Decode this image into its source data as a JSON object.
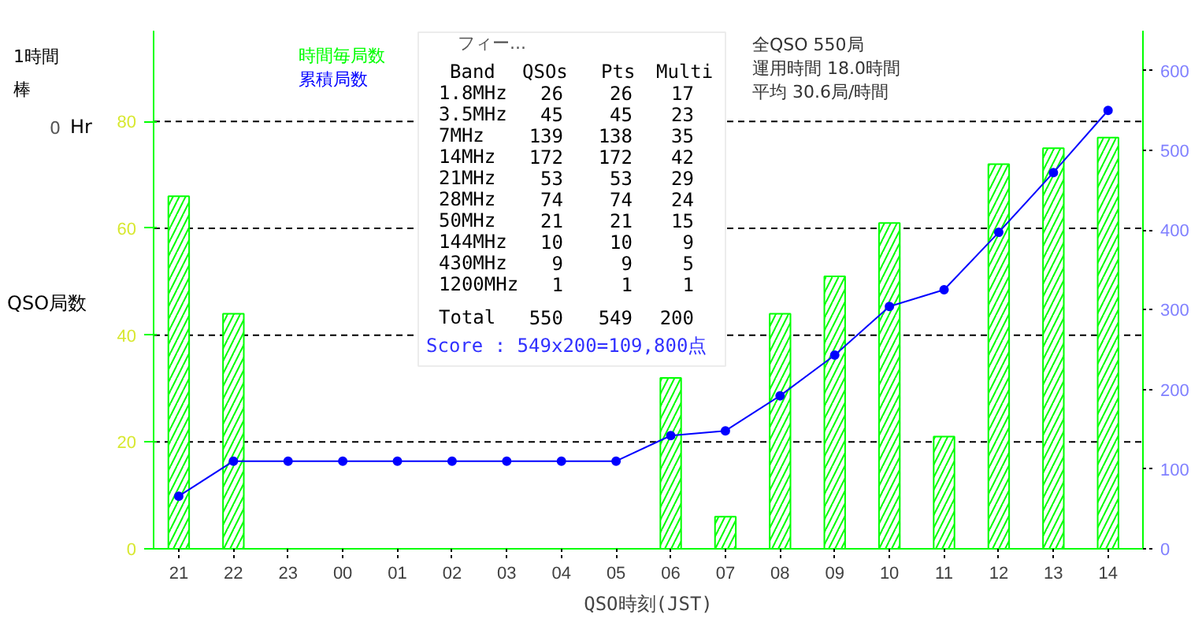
{
  "chart_data": {
    "type": "bar",
    "xlabel": "QSO時刻(JST)",
    "ylabel": "QSO局数",
    "categories": [
      "21",
      "22",
      "23",
      "00",
      "01",
      "02",
      "03",
      "04",
      "05",
      "06",
      "07",
      "08",
      "09",
      "10",
      "11",
      "12",
      "13",
      "14"
    ],
    "series": [
      {
        "name": "時間毎局数",
        "color": "#00ff00",
        "values": [
          66,
          44,
          0,
          0,
          0,
          0,
          0,
          0,
          0,
          32,
          6,
          44,
          51,
          61,
          21,
          72,
          75,
          77
        ]
      },
      {
        "name": "累積局数",
        "type": "line",
        "axis": "y2",
        "color": "#0000ff",
        "values": [
          66,
          110,
          110,
          110,
          110,
          110,
          110,
          110,
          110,
          142,
          148,
          192,
          243,
          304,
          325,
          397,
          472,
          550
        ]
      }
    ],
    "ylim": [
      0,
      97
    ],
    "yticks": [
      0,
      20,
      40,
      60,
      80
    ],
    "y2lim": [
      0,
      650
    ],
    "y2ticks": [
      0,
      100,
      200,
      300,
      400,
      500,
      600
    ],
    "grid": "y",
    "legend": "top left",
    "marker": "circle",
    "line_style": "solid",
    "annotations": [
      "全QSO 550局",
      "運用時間 18.0時間",
      "平均 30.6局/時間",
      "1時間",
      "棒",
      "0",
      "Hr",
      "フィー...",
      "Band QSOs Pts Multi",
      "1.8MHz 26 26 17",
      "3.5MHz 45 45 23",
      "7MHz 139 138 35",
      "14MHz 172 172 42",
      "21MHz 53 53 29",
      "28MHz 74 74 24",
      "50MHz 21 21 15",
      "144MHz 10 10 9",
      "430MHz 9 9 5",
      "1200MHz 1 1 1",
      "Total 550 549 200",
      "Score : 549x200=109,800点"
    ]
  }
}
